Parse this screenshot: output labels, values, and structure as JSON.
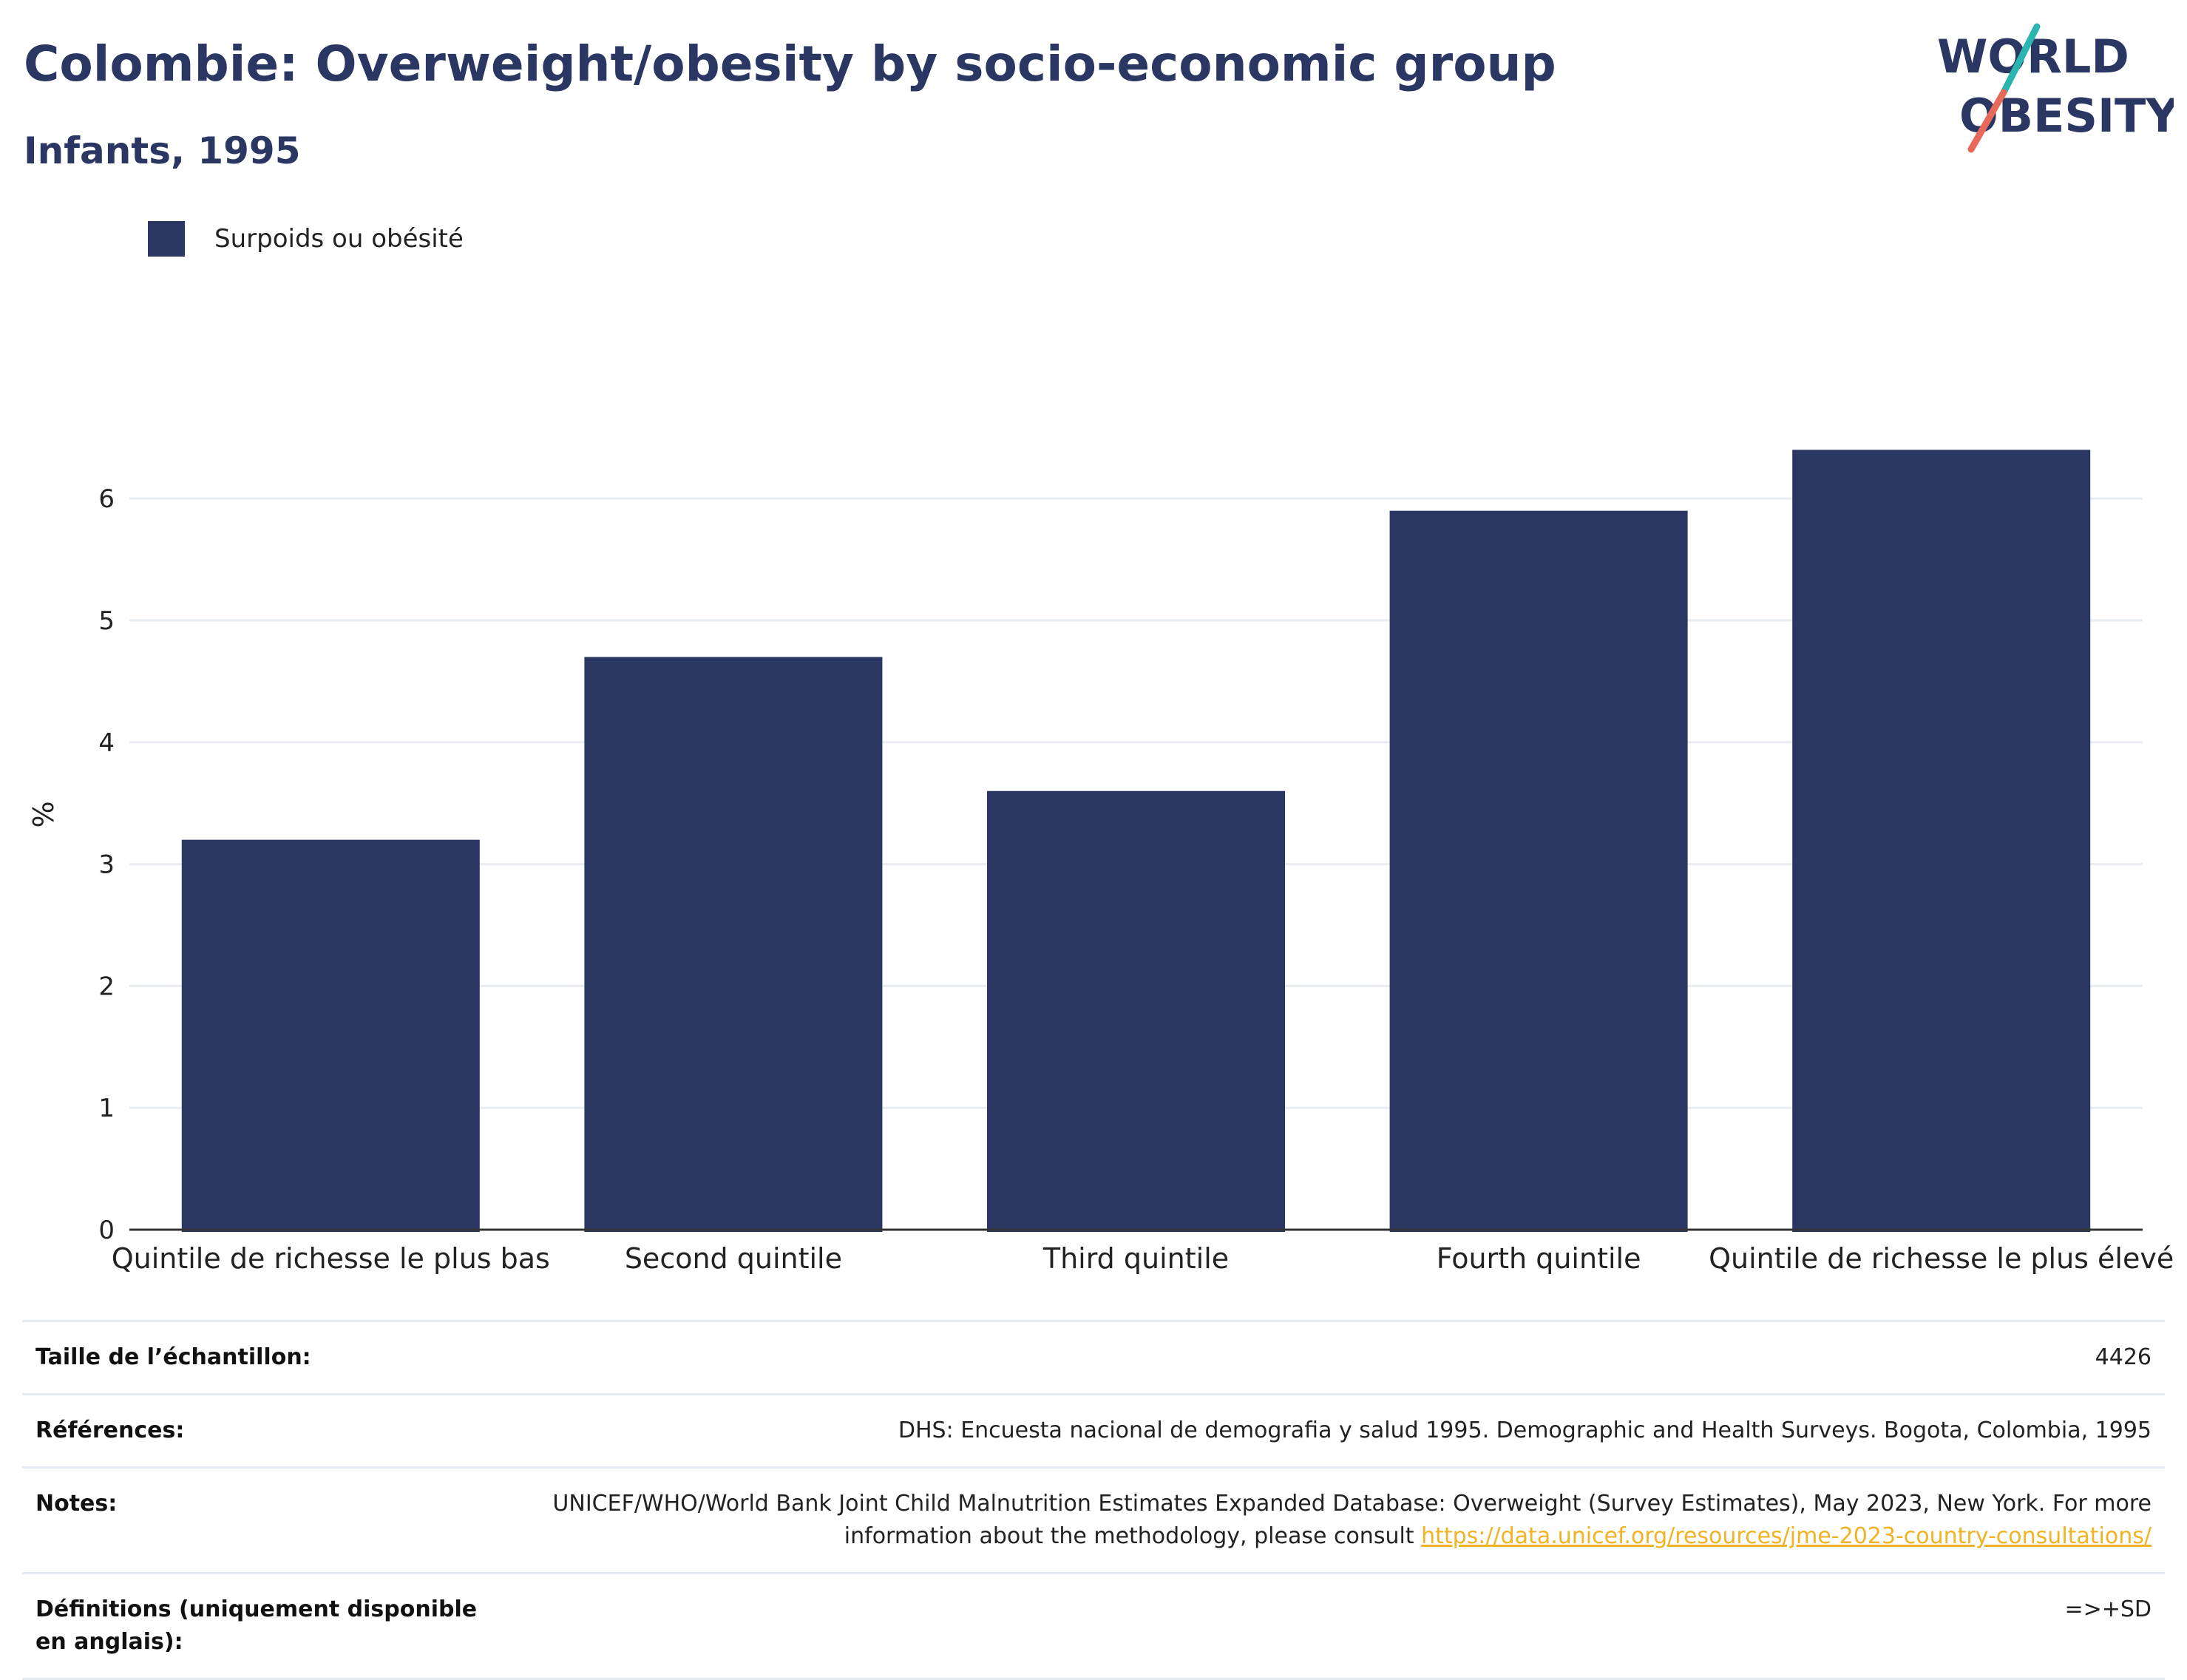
{
  "header": {
    "title": "Colombie: Overweight/obesity by socio-economic group",
    "subtitle": "Infants, 1995"
  },
  "logo": {
    "line1": "WORLD",
    "line2": "OBESITY",
    "colors": {
      "text": "#2b3763",
      "slash_teal": "#2bb5b0",
      "slash_coral": "#e8685a"
    }
  },
  "legend": {
    "items": [
      {
        "label": "Surpoids ou obésité",
        "color": "#2b3763"
      }
    ]
  },
  "chart_data": {
    "type": "bar",
    "categories": [
      "Quintile de richesse le plus bas",
      "Second quintile",
      "Third quintile",
      "Fourth quintile",
      "Quintile de richesse le plus élevé"
    ],
    "series": [
      {
        "name": "Surpoids ou obésité",
        "values": [
          3.2,
          4.7,
          3.6,
          5.9,
          6.4
        ],
        "color": "#2b3763"
      }
    ],
    "ylabel": "%",
    "ylim": [
      0,
      7.3
    ],
    "yticks": [
      0,
      1,
      2,
      3,
      4,
      5,
      6
    ],
    "grid": true,
    "legend_position": "top-left"
  },
  "info": {
    "rows": [
      {
        "label": "Taille de l’échantillon:",
        "value": "4426"
      },
      {
        "label": "Références:",
        "value": "DHS: Encuesta nacional de demografia y salud 1995. Demographic and Health Surveys. Bogota, Colombia, 1995"
      },
      {
        "label": "Notes:",
        "value": "UNICEF/WHO/World Bank Joint Child Malnutrition Estimates Expanded Database: Overweight (Survey Estimates), May 2023, New York. For more information about the methodology, please consult ",
        "link": "https://data.unicef.org/resources/jme-2023-country-consultations/"
      },
      {
        "label": "Définitions (uniquement disponible en anglais):",
        "value": "=>+SD"
      }
    ]
  }
}
